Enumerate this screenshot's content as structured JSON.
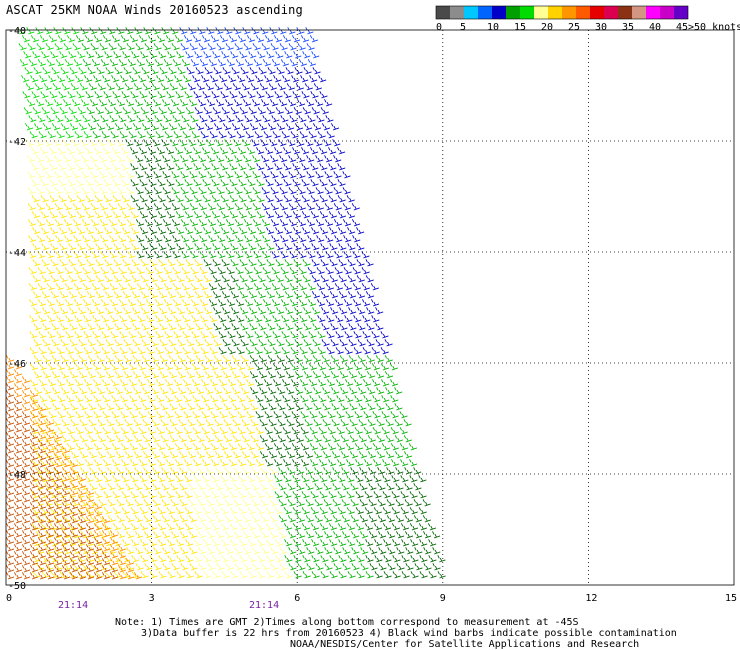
{
  "title": "ASCAT 25KM NOAA Winds 20160523 ascending",
  "legend": {
    "unit_label": ">50 knots",
    "tick_labels": [
      "0",
      "5",
      "10",
      "15",
      "20",
      "25",
      "30",
      "35",
      "40",
      "45"
    ],
    "bins": [
      {
        "color": "#4a4a4a"
      },
      {
        "color": "#8c8c8c"
      },
      {
        "color": "#00c8ff"
      },
      {
        "color": "#0064ff"
      },
      {
        "color": "#0000c8"
      },
      {
        "color": "#00a000"
      },
      {
        "color": "#00dc00"
      },
      {
        "color": "#ffff96"
      },
      {
        "color": "#ffd200"
      },
      {
        "color": "#ff9600"
      },
      {
        "color": "#ff5a00"
      },
      {
        "color": "#e60000"
      },
      {
        "color": "#dc0050"
      },
      {
        "color": "#8c3214"
      },
      {
        "color": "#d29682"
      },
      {
        "color": "#ff00ff"
      },
      {
        "color": "#c800c8"
      },
      {
        "color": "#6400c8"
      }
    ]
  },
  "map": {
    "y_labels": [
      "-40",
      "-42",
      "-44",
      "-46",
      "-48",
      "-50"
    ],
    "x_labels": [
      "0",
      "3",
      "6",
      "9",
      "12",
      "15"
    ],
    "lat_range": [
      -50,
      -40
    ],
    "lon_range": [
      0,
      15
    ],
    "grid": "dotted",
    "swath_colors": {
      "darkblue": "#0000c8",
      "blue": "#1446ff",
      "green": "#00b400",
      "lightgreen": "#00dc00",
      "darkgreen": "#006400",
      "yellow": "#ffe600",
      "paleyellow": "#ffff8c",
      "orange": "#ff8c00",
      "darkorange": "#c85000"
    }
  },
  "times": [
    {
      "label": "21:14"
    },
    {
      "label": "21:14"
    }
  ],
  "notes": {
    "line1": "Note: 1) Times are GMT 2)Times along bottom correspond to measurement at -45S",
    "line2": "3)Data buffer is 22 hrs from 20160523 4) Black wind barbs indicate possible contamination",
    "line3": "NOAA/NESDIS/Center for Satellite Applications and Research"
  }
}
